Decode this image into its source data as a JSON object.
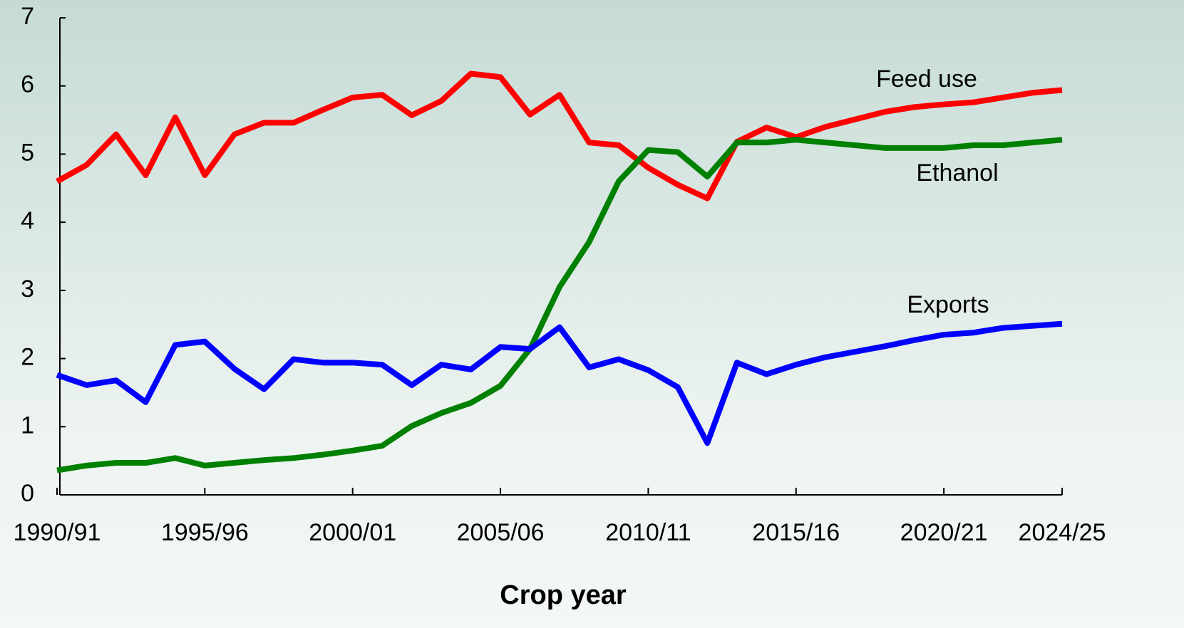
{
  "chart_data": {
    "type": "line",
    "x_label": "Crop year",
    "categories": [
      "1990/91",
      null,
      null,
      null,
      null,
      "1995/96",
      null,
      null,
      null,
      null,
      "2000/01",
      null,
      null,
      null,
      null,
      "2005/06",
      null,
      null,
      null,
      null,
      "2010/11",
      null,
      null,
      null,
      null,
      "2015/16",
      null,
      null,
      null,
      null,
      "2020/21",
      null,
      null,
      null,
      "2024/25"
    ],
    "series": [
      {
        "name": "Feed use",
        "color": "#ff0000",
        "values": [
          4.6,
          4.84,
          5.29,
          4.69,
          5.54,
          4.69,
          5.29,
          5.46,
          5.46,
          5.65,
          5.83,
          5.87,
          5.57,
          5.78,
          6.18,
          6.13,
          5.58,
          5.87,
          5.17,
          5.13,
          4.8,
          4.55,
          4.35,
          5.18,
          5.39,
          5.25,
          5.4,
          5.51,
          5.62,
          5.69,
          5.73,
          5.76,
          5.83,
          5.9,
          5.94
        ]
      },
      {
        "name": "Ethanol",
        "color": "#008000",
        "values": [
          0.36,
          0.43,
          0.47,
          0.47,
          0.54,
          0.43,
          0.47,
          0.51,
          0.54,
          0.59,
          0.65,
          0.72,
          1.01,
          1.2,
          1.35,
          1.6,
          2.14,
          3.05,
          3.71,
          4.6,
          5.06,
          5.03,
          4.67,
          5.17,
          5.17,
          5.21,
          5.17,
          5.13,
          5.09,
          5.09,
          5.09,
          5.13,
          5.13,
          5.17,
          5.21
        ]
      },
      {
        "name": "Exports",
        "color": "#0000ff",
        "values": [
          1.76,
          1.61,
          1.68,
          1.36,
          2.2,
          2.25,
          1.85,
          1.55,
          1.99,
          1.94,
          1.94,
          1.91,
          1.61,
          1.91,
          1.84,
          2.17,
          2.14,
          2.46,
          1.87,
          1.99,
          1.83,
          1.58,
          0.76,
          1.94,
          1.77,
          1.91,
          2.02,
          2.1,
          2.18,
          2.27,
          2.35,
          2.38,
          2.45,
          2.48,
          2.51
        ]
      }
    ],
    "ylim": [
      0,
      7
    ],
    "yticks": [
      0,
      1,
      2,
      3,
      4,
      5,
      6,
      7
    ]
  }
}
